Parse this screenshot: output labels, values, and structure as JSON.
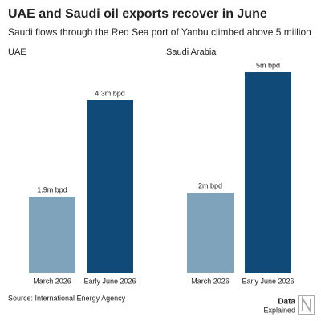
{
  "header": {
    "title": "UAE and Saudi oil exports recover in June",
    "subtitle": "Saudi flows through the Red Sea port of Yanbu climbed above 5 million"
  },
  "chart_data": [
    {
      "type": "bar",
      "title": "UAE",
      "categories": [
        "March 2026",
        "Early June 2026"
      ],
      "values": [
        1.9,
        4.3
      ],
      "value_labels": [
        "1.9m bpd",
        "4.3m bpd"
      ],
      "colors": [
        "#7fa3bb",
        "#0f4a78"
      ]
    },
    {
      "type": "bar",
      "title": "Saudi Arabia",
      "categories": [
        "March 2026",
        "Early June 2026"
      ],
      "values": [
        2,
        5
      ],
      "value_labels": [
        "2m bpd",
        "5m bpd"
      ],
      "colors": [
        "#7fa3bb",
        "#0f4a78"
      ]
    }
  ],
  "source": "Source: International Energy Agency",
  "branding": {
    "line1": "Data",
    "line2": "Explained"
  }
}
